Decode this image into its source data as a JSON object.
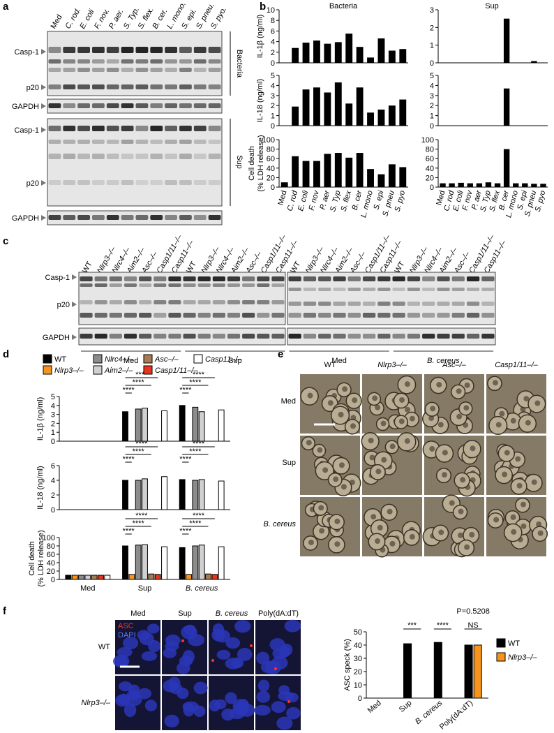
{
  "panel_labels": [
    "a",
    "b",
    "c",
    "d",
    "e",
    "f"
  ],
  "blot_a": {
    "lanes": [
      "Med",
      "C. rod.",
      "E. coli",
      "F. nov.",
      "P. aer.",
      "S. Typ.",
      "S. flex.",
      "B. cer.",
      "L. mono.",
      "S. epi.",
      "S. pneu.",
      "S. pyo."
    ],
    "bands": [
      "Casp-1",
      "p20",
      "GAPDH",
      "Casp-1",
      "p20",
      "GAPDH"
    ],
    "groups": [
      "Bacteria",
      "Sup"
    ]
  },
  "panel_b_headers": [
    "Bacteria",
    "Sup"
  ],
  "blot_c": {
    "lanes": [
      "WT",
      "Nlrp3–/–",
      "Nlrc4–/–",
      "Aim2–/–",
      "Asc–/–",
      "Casp1/11–/–",
      "Casp11–/–"
    ],
    "bands": [
      "Casp-1",
      "p20",
      "GAPDH"
    ],
    "groups": [
      "Med",
      "Sup",
      "Med",
      "B. cereus"
    ]
  },
  "micrographs_e": {
    "columns": [
      "WT",
      "Nlrp3–/–",
      "Asc–/–",
      "Casp1/11–/–"
    ],
    "rows": [
      "Med",
      "Sup",
      "B. cereus"
    ]
  },
  "micrographs_f": {
    "columns": [
      "Med",
      "Sup",
      "B. cereus",
      "Poly(dA:dT)"
    ],
    "rows": [
      "WT",
      "Nlrp3–/–"
    ],
    "stains": [
      "ASC",
      "DAPI"
    ]
  },
  "chart_data": [
    {
      "type": "bar",
      "ylabel": "IL-1β (ng/ml)",
      "color": "#000000",
      "values": [
        0,
        2.8,
        3.8,
        4.2,
        3.6,
        3.9,
        5.5,
        3.0,
        1.0,
        4.6,
        2.3,
        2.6
      ],
      "ylim": [
        0,
        10
      ],
      "yticks": [
        0,
        2,
        4,
        6,
        8,
        10
      ]
    },
    {
      "type": "bar",
      "color": "#000000",
      "values": [
        0,
        0,
        0,
        0,
        0,
        0,
        0,
        2.5,
        0,
        0,
        0.1,
        0
      ],
      "ylim": [
        0,
        3
      ],
      "yticks": [
        0,
        1,
        2,
        3
      ]
    },
    {
      "type": "bar",
      "ylabel": "IL-18 (ng/ml)",
      "color": "#000000",
      "values": [
        0,
        1.9,
        3.6,
        3.8,
        3.3,
        4.3,
        2.2,
        3.8,
        1.3,
        1.6,
        2.0,
        2.6
      ],
      "ylim": [
        0,
        5
      ],
      "yticks": [
        0,
        1,
        2,
        3,
        4,
        5
      ]
    },
    {
      "type": "bar",
      "color": "#000000",
      "values": [
        0,
        0,
        0,
        0,
        0,
        0,
        0,
        3.7,
        0,
        0,
        0,
        0
      ],
      "ylim": [
        0,
        5
      ],
      "yticks": [
        0,
        1,
        2,
        3,
        4,
        5
      ]
    },
    {
      "type": "bar",
      "ylabel": [
        "Cell death",
        "(% LDH release)"
      ],
      "color": "#000000",
      "categories": [
        "Med",
        "C. rod",
        "E. coli",
        "F. nov",
        "P. aer",
        "S. Typ",
        "S. flex",
        "B. cer",
        "L. mono",
        "S. epi",
        "S. pneu",
        "S. pyo"
      ],
      "values": [
        10,
        65,
        55,
        55,
        70,
        72,
        62,
        72,
        38,
        27,
        48,
        42
      ],
      "ylim": [
        0,
        100
      ],
      "yticks": [
        0,
        20,
        40,
        60,
        80,
        100
      ]
    },
    {
      "type": "bar",
      "color": "#000000",
      "categories": [
        "Med",
        "C. rod",
        "E. coli",
        "F. nov",
        "P. aer",
        "S. Typ",
        "S. flex",
        "B. cer",
        "L. mono",
        "S. epi",
        "S. pneu",
        "S. pyo"
      ],
      "values": [
        8,
        8,
        9,
        8,
        8,
        10,
        8,
        80,
        8,
        8,
        7,
        7
      ],
      "ylim": [
        0,
        100
      ],
      "yticks": [
        0,
        20,
        40,
        60,
        80,
        100
      ]
    },
    {
      "type": "grouped_bar",
      "ylabel": "IL-1β (ng/ml)",
      "ylim": [
        0,
        5
      ],
      "yticks": [
        0,
        1,
        2,
        3,
        4,
        5
      ],
      "series": [
        {
          "name": "WT",
          "color": "#000000",
          "values": [
            0,
            3.3,
            4.0
          ]
        },
        {
          "name": "Nlrp3–/–",
          "color": "#f7941d",
          "values": [
            0,
            0,
            0
          ]
        },
        {
          "name": "Nlrc4–/–",
          "color": "#8c8c8c",
          "values": [
            0,
            3.6,
            3.8
          ]
        },
        {
          "name": "Aim2–/–",
          "color": "#d0d0d0",
          "values": [
            0,
            3.7,
            3.3
          ]
        },
        {
          "name": "Asc–/–",
          "color": "#a67c52",
          "values": [
            0,
            0,
            0
          ]
        },
        {
          "name": "Casp1/11–/–",
          "color": "#e8341c",
          "values": [
            0,
            0,
            0
          ]
        },
        {
          "name": "Casp11–/–",
          "color": "#ffffff",
          "values": [
            0,
            3.4,
            3.5
          ]
        }
      ],
      "annotations": [
        "****",
        "****",
        "****",
        "****",
        "****",
        "****"
      ]
    },
    {
      "type": "grouped_bar",
      "ylabel": "IL-18 (ng/ml)",
      "ylim": [
        0,
        6
      ],
      "yticks": [
        0,
        2,
        4,
        6
      ],
      "series": [
        {
          "color": "#000000",
          "values": [
            0,
            4.0,
            4.1
          ]
        },
        {
          "color": "#f7941d",
          "values": [
            0,
            0,
            0
          ]
        },
        {
          "color": "#8c8c8c",
          "values": [
            0,
            4.0,
            4.0
          ]
        },
        {
          "color": "#d0d0d0",
          "values": [
            0,
            4.2,
            4.1
          ]
        },
        {
          "color": "#a67c52",
          "values": [
            0,
            0,
            0
          ]
        },
        {
          "color": "#e8341c",
          "values": [
            0,
            0,
            0
          ]
        },
        {
          "color": "#ffffff",
          "values": [
            0,
            4.5,
            3.9
          ]
        }
      ],
      "annotations": [
        "****",
        "****",
        "****",
        "****",
        "****",
        "****"
      ]
    },
    {
      "type": "grouped_bar",
      "ylabel": [
        "Cell death",
        "(% LDH release)"
      ],
      "ylim": [
        0,
        100
      ],
      "yticks": [
        0,
        20,
        40,
        60,
        80,
        100
      ],
      "categories": [
        "Med",
        "Sup",
        "B. cereus"
      ],
      "series": [
        {
          "color": "#000000",
          "values": [
            10,
            80,
            76
          ]
        },
        {
          "color": "#f7941d",
          "values": [
            10,
            12,
            12
          ]
        },
        {
          "color": "#8c8c8c",
          "values": [
            10,
            82,
            80
          ]
        },
        {
          "color": "#d0d0d0",
          "values": [
            10,
            83,
            82
          ]
        },
        {
          "color": "#a67c52",
          "values": [
            10,
            13,
            13
          ]
        },
        {
          "color": "#e8341c",
          "values": [
            10,
            12,
            12
          ]
        },
        {
          "color": "#ffffff",
          "values": [
            10,
            78,
            78
          ]
        }
      ],
      "annotations": [
        "****",
        "****",
        "****",
        "****",
        "****",
        "****"
      ]
    },
    {
      "type": "grouped_bar",
      "ylabel": "ASC speck (%)",
      "subtitle": "P=0.5208",
      "ylim": [
        0,
        50
      ],
      "yticks": [
        0,
        10,
        20,
        30,
        40,
        50
      ],
      "categories": [
        "Med",
        "Sup",
        "B. cereus",
        "Poly(dA:dT)"
      ],
      "series": [
        {
          "name": "WT",
          "color": "#000000",
          "values": [
            0,
            41,
            42,
            40
          ]
        },
        {
          "name": "Nlrp3–/–",
          "color": "#f7941d",
          "values": [
            0,
            0,
            0,
            40
          ]
        }
      ],
      "annotations": [
        "***",
        "****",
        "NS"
      ]
    }
  ]
}
